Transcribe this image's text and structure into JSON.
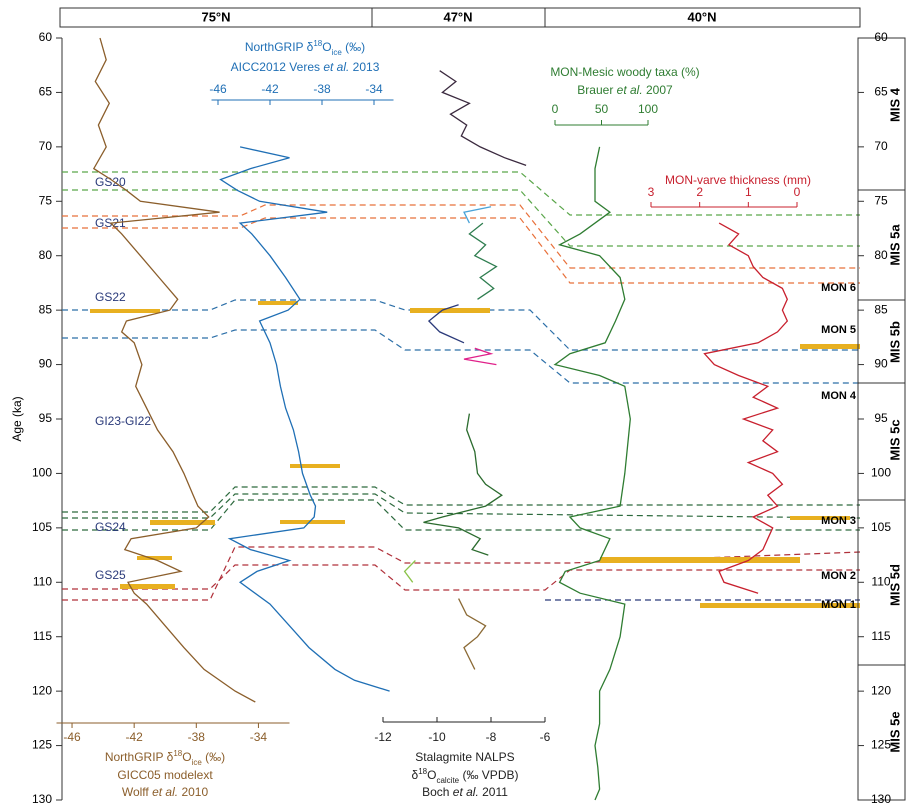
{
  "regions": [
    "75°N",
    "47°N",
    "40°N"
  ],
  "stages": [
    "MIS 4",
    "MIS 5a",
    "MIS 5b",
    "MIS 5c",
    "MIS 5d",
    "MIS 5e"
  ],
  "events": [
    "GS20",
    "GS21",
    "GS22",
    "GI23-GI22",
    "GS24",
    "GS25"
  ],
  "mon_units": [
    "MON 6",
    "MON 5",
    "MON 4",
    "MON 3",
    "MON 2",
    "MON 1"
  ],
  "chart_data": [
    {
      "type": "line",
      "x_label": "Age (ka)",
      "xlim": [
        60,
        130
      ],
      "xticks": [
        60,
        65,
        70,
        75,
        80,
        85,
        90,
        95,
        100,
        105,
        110,
        115,
        120,
        125,
        130
      ],
      "title": [
        [
          "NorthGRIP  δ",
          {
            "text": "18",
            "style": "sup"
          },
          "O",
          {
            "text": "ice",
            "style": "sub"
          },
          " (‰)"
        ],
        [
          "GICC05 modelext"
        ],
        [
          "Wolff ",
          {
            "text": "et al.",
            "style": "italic"
          },
          " 2010"
        ]
      ],
      "ylim": [
        -47,
        -32
      ],
      "yticks": [
        -46,
        -42,
        -38,
        -34
      ],
      "series": [
        {
          "color": "#8b5e2b",
          "x": [
            60,
            62,
            64,
            66,
            68,
            70,
            72,
            73,
            74,
            75,
            76,
            77,
            78,
            80,
            82,
            84,
            85,
            86,
            87,
            88,
            90,
            92,
            94,
            96,
            98,
            100,
            102,
            103,
            104,
            105,
            106,
            107,
            108,
            109,
            110,
            111,
            112,
            114,
            116,
            118,
            120,
            121
          ],
          "values": [
            -44.2,
            -43.8,
            -44.5,
            -43.6,
            -44.3,
            -43.8,
            -44.6,
            -43.5,
            -42.5,
            -41.6,
            -36.5,
            -43.5,
            -42.8,
            -41.6,
            -40.4,
            -39.2,
            -39.7,
            -42.5,
            -42.8,
            -42.0,
            -41.5,
            -41.9,
            -41.2,
            -40.5,
            -39.5,
            -38.8,
            -38.2,
            -37.9,
            -37.2,
            -38.0,
            -42.2,
            -42.6,
            -40.5,
            -39.0,
            -42.4,
            -42.0,
            -41.2,
            -40.0,
            -38.8,
            -37.5,
            -35.5,
            -34.2
          ]
        }
      ]
    },
    {
      "type": "line",
      "title": [
        [
          "NorthGRIP δ",
          {
            "text": "18",
            "style": "sup"
          },
          "O",
          {
            "text": "ice",
            "style": "sub"
          },
          " (‰)"
        ],
        [
          "AICC2012 Veres ",
          {
            "text": "et al.",
            "style": "italic"
          },
          " 2013"
        ]
      ],
      "ylim": [
        -46.5,
        -32.5
      ],
      "yticks": [
        -46,
        -42,
        -38,
        -34
      ],
      "series": [
        {
          "color": "#1f6fb5",
          "x": [
            70,
            71,
            72,
            73,
            74,
            75,
            76,
            77,
            78,
            80,
            82,
            84,
            85,
            86,
            88,
            90,
            92,
            94,
            96,
            98,
            100,
            102,
            103,
            104,
            105,
            106,
            107,
            108,
            109,
            110,
            112,
            114,
            116,
            118,
            119,
            120
          ],
          "values": [
            -44.3,
            -40.5,
            -43.5,
            -45.8,
            -44.5,
            -42.8,
            -37.6,
            -44.3,
            -43.4,
            -42.0,
            -40.8,
            -39.7,
            -40.6,
            -42.8,
            -42.0,
            -41.5,
            -41.2,
            -40.8,
            -40.2,
            -39.8,
            -39.5,
            -38.9,
            -38.5,
            -38.6,
            -39.4,
            -45.1,
            -43.5,
            -40.5,
            -43.0,
            -44.3,
            -42.0,
            -40.5,
            -39.0,
            -37.0,
            -35.5,
            -32.8
          ]
        }
      ]
    },
    {
      "type": "line",
      "title": [
        [
          "Stalagmite NALPS"
        ],
        [
          "δ",
          {
            "text": "18",
            "style": "sup"
          },
          "O",
          {
            "text": "calcite",
            "style": "sub"
          },
          " (‰ VPDB)"
        ],
        [
          "Boch ",
          {
            "text": "et al.",
            "style": "italic"
          },
          " 2011"
        ]
      ],
      "ylim": [
        -12,
        -6
      ],
      "yticks": [
        -12,
        -10,
        -8,
        -6
      ],
      "series": [
        {
          "color": "#3b2a3f",
          "x": [
            63,
            64,
            65,
            66,
            67,
            68,
            69,
            70,
            71,
            71.7
          ],
          "values": [
            -9.9,
            -9.3,
            -9.8,
            -8.8,
            -9.5,
            -8.9,
            -9.1,
            -8.4,
            -7.5,
            -6.7
          ]
        },
        {
          "color": "#4aa3d8",
          "x": [
            75.5,
            76,
            77
          ],
          "values": [
            -8.0,
            -9.0,
            -8.8
          ]
        },
        {
          "color": "#2e7d4f",
          "x": [
            77,
            78,
            79,
            80,
            81,
            82,
            83,
            84
          ],
          "values": [
            -8.3,
            -8.8,
            -8.2,
            -8.6,
            -7.8,
            -8.4,
            -7.9,
            -8.5
          ]
        },
        {
          "color": "#2b3a7a",
          "x": [
            84.5,
            85,
            86,
            87,
            88
          ],
          "values": [
            -9.2,
            -9.8,
            -10.3,
            -9.9,
            -9.0
          ]
        },
        {
          "color": "#e0218a",
          "x": [
            88.5,
            89,
            89.5,
            90
          ],
          "values": [
            -8.6,
            -8.0,
            -9.0,
            -7.8
          ]
        },
        {
          "color": "#2b6b2e",
          "x": [
            94.5,
            96,
            98,
            100,
            101,
            102,
            103,
            104,
            104.5,
            105,
            106,
            107,
            107.5
          ],
          "values": [
            -8.8,
            -8.9,
            -8.6,
            -8.5,
            -8.2,
            -7.6,
            -8.2,
            -9.8,
            -10.5,
            -9.2,
            -8.4,
            -8.7,
            -8.1
          ]
        },
        {
          "color": "#8bc34a",
          "x": [
            108,
            109,
            110
          ],
          "values": [
            -10.8,
            -11.2,
            -10.9
          ]
        },
        {
          "color": "#8b6a35",
          "x": [
            111.5,
            113,
            114,
            115,
            116,
            117,
            118
          ],
          "values": [
            -9.2,
            -8.9,
            -8.2,
            -8.5,
            -9.0,
            -8.8,
            -8.6
          ]
        }
      ]
    },
    {
      "type": "line",
      "title": [
        [
          "MON-Mesic woody taxa (%)"
        ],
        [
          "Brauer ",
          {
            "text": "et al.",
            "style": "italic"
          },
          " 2007"
        ]
      ],
      "ylim": [
        0,
        100
      ],
      "yticks": [
        0,
        50,
        100
      ],
      "series": [
        {
          "color": "#2f7d32",
          "x": [
            70,
            72,
            75,
            76,
            78,
            79,
            80,
            82,
            84,
            86,
            88,
            89,
            90,
            91,
            92,
            95,
            100,
            103,
            104,
            105,
            106,
            108,
            109,
            110,
            111,
            112,
            115,
            118,
            120,
            123,
            125,
            127,
            129,
            130
          ],
          "values": [
            48,
            43,
            43,
            59,
            27,
            5,
            48,
            70,
            75,
            65,
            54,
            16,
            0,
            48,
            75,
            81,
            75,
            70,
            16,
            27,
            59,
            48,
            11,
            5,
            27,
            75,
            70,
            59,
            48,
            48,
            43,
            46,
            48,
            43
          ]
        }
      ]
    },
    {
      "type": "line",
      "title": [
        [
          "MON-varve thickness (mm)"
        ]
      ],
      "ylim": [
        3,
        0
      ],
      "yticks": [
        3,
        2,
        1,
        0
      ],
      "series": [
        {
          "color": "#c8202e",
          "x": [
            77,
            78,
            79,
            80,
            81,
            82,
            83,
            84,
            85,
            86,
            87,
            88,
            89,
            90,
            91,
            92,
            93,
            94,
            95,
            96,
            97,
            98,
            99,
            100,
            101,
            102,
            103,
            104,
            105,
            106,
            107,
            108,
            109,
            110,
            111
          ],
          "values": [
            1.6,
            1.2,
            1.4,
            1.0,
            0.9,
            0.7,
            0.3,
            0.2,
            0.3,
            0.2,
            0.4,
            0.8,
            1.9,
            1.7,
            1.2,
            0.6,
            0.9,
            0.4,
            1.1,
            0.5,
            0.7,
            0.4,
            1.0,
            0.5,
            0.3,
            0.6,
            0.4,
            0.9,
            0.5,
            0.6,
            0.7,
            1.0,
            1.6,
            1.5,
            0.8
          ]
        }
      ]
    }
  ]
}
